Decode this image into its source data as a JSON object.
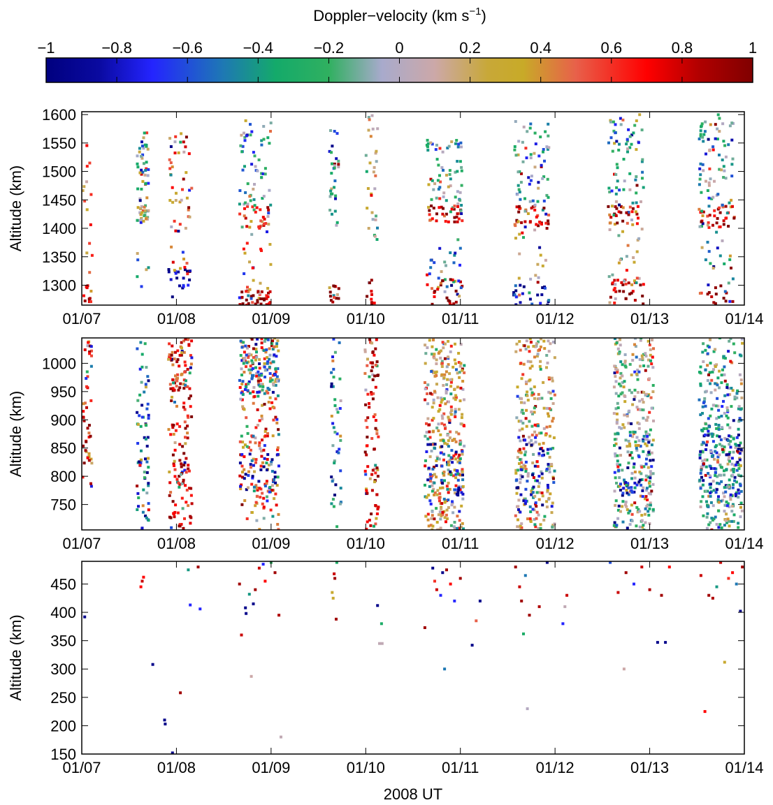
{
  "colorbar": {
    "label": "Doppler−velocity (km s",
    "label_exp": "−1",
    "label_close": ")",
    "range": [
      -1,
      1
    ],
    "tick_labels": [
      "−1",
      "−0.8",
      "−0.6",
      "−0.4",
      "−0.2",
      "0",
      "0.2",
      "0.4",
      "0.6",
      "0.8",
      "1"
    ],
    "tick_values": [
      -1,
      -0.8,
      -0.6,
      -0.4,
      -0.2,
      0,
      0.2,
      0.4,
      0.6,
      0.8,
      1
    ],
    "stops": [
      {
        "v": -1.0,
        "color": "#00007f"
      },
      {
        "v": -0.85,
        "color": "#0a0aa0"
      },
      {
        "v": -0.7,
        "color": "#2424ff"
      },
      {
        "v": -0.5,
        "color": "#1e78b4"
      },
      {
        "v": -0.35,
        "color": "#14aa6a"
      },
      {
        "v": -0.2,
        "color": "#30b060"
      },
      {
        "v": -0.05,
        "color": "#a8aacc"
      },
      {
        "v": 0.1,
        "color": "#cca8a8"
      },
      {
        "v": 0.25,
        "color": "#c8a838"
      },
      {
        "v": 0.35,
        "color": "#c8aa28"
      },
      {
        "v": 0.5,
        "color": "#e8604a"
      },
      {
        "v": 0.7,
        "color": "#ff0000"
      },
      {
        "v": 0.85,
        "color": "#b00000"
      },
      {
        "v": 1.0,
        "color": "#800000"
      }
    ]
  },
  "chart_data": [
    {
      "type": "scatter",
      "name": "high-altitude",
      "ylabel": "Altitude (km)",
      "xlabel": "",
      "xlim": [
        "2008-01-07",
        "2008-01-14"
      ],
      "ylim": [
        1265,
        1605
      ],
      "x_tick_labels": [
        "01/07",
        "01/08",
        "01/09",
        "01/10",
        "01/11",
        "01/12",
        "01/13",
        "01/14"
      ],
      "y_ticks": [
        1300,
        1350,
        1400,
        1450,
        1500,
        1550,
        1600
      ],
      "bands": [
        {
          "center": "2008-01-07T01:30",
          "width_h": 2.5,
          "clusters": [
            [
              1265,
              1300,
              0.8,
              10
            ],
            [
              1300,
              1560,
              0.4,
              14
            ]
          ]
        },
        {
          "center": "2008-01-07T15:30",
          "width_h": 3.0,
          "clusters": [
            [
              1410,
              1440,
              0.0,
              30
            ],
            [
              1440,
              1570,
              -0.35,
              40
            ],
            [
              1290,
              1360,
              -0.3,
              6
            ]
          ]
        },
        {
          "center": "2008-01-08T01:00",
          "width_h": 6.0,
          "clusters": [
            [
              1270,
              1330,
              -0.9,
              22
            ],
            [
              1400,
              1580,
              0.5,
              40
            ],
            [
              1330,
              1400,
              0.6,
              8
            ]
          ]
        },
        {
          "center": "2008-01-08T20:00",
          "width_h": 8.0,
          "clusters": [
            [
              1265,
              1290,
              0.9,
              40
            ],
            [
              1400,
              1440,
              0.6,
              30
            ],
            [
              1440,
              1590,
              -0.3,
              55
            ],
            [
              1290,
              1400,
              0.3,
              18
            ]
          ]
        },
        {
          "center": "2008-01-09T16:00",
          "width_h": 2.5,
          "clusters": [
            [
              1265,
              1300,
              0.9,
              14
            ],
            [
              1400,
              1600,
              -0.35,
              30
            ]
          ]
        },
        {
          "center": "2008-01-10T01:30",
          "width_h": 3.0,
          "clusters": [
            [
              1265,
              1310,
              0.9,
              10
            ],
            [
              1380,
              1600,
              0.1,
              30
            ]
          ]
        },
        {
          "center": "2008-01-10T20:00",
          "width_h": 9.0,
          "clusters": [
            [
              1265,
              1310,
              0.9,
              30
            ],
            [
              1410,
              1440,
              0.8,
              35
            ],
            [
              1440,
              1560,
              -0.2,
              60
            ],
            [
              1270,
              1380,
              -0.5,
              22
            ]
          ]
        },
        {
          "center": "2008-01-11T18:00",
          "width_h": 9.0,
          "clusters": [
            [
              1265,
              1300,
              -0.8,
              25
            ],
            [
              1400,
              1440,
              0.7,
              40
            ],
            [
              1440,
              1590,
              -0.25,
              60
            ],
            [
              1300,
              1400,
              0.3,
              16
            ]
          ]
        },
        {
          "center": "2008-01-12T18:00",
          "width_h": 9.0,
          "clusters": [
            [
              1265,
              1310,
              0.9,
              28
            ],
            [
              1405,
              1440,
              0.7,
              35
            ],
            [
              1440,
              1600,
              -0.3,
              65
            ],
            [
              1300,
              1400,
              0.3,
              25
            ]
          ]
        },
        {
          "center": "2008-01-13T17:00",
          "width_h": 9.0,
          "clusters": [
            [
              1265,
              1300,
              0.9,
              16
            ],
            [
              1400,
              1440,
              0.75,
              40
            ],
            [
              1440,
              1600,
              -0.25,
              70
            ],
            [
              1300,
              1400,
              -0.4,
              18
            ]
          ]
        }
      ]
    },
    {
      "type": "scatter",
      "name": "mid-altitude",
      "ylabel": "Altitude (km)",
      "xlabel": "",
      "xlim": [
        "2008-01-07",
        "2008-01-14"
      ],
      "ylim": [
        705,
        1045
      ],
      "x_tick_labels": [
        "01/07",
        "01/08",
        "01/09",
        "01/10",
        "01/11",
        "01/12",
        "01/13",
        "01/14"
      ],
      "y_ticks": [
        750,
        800,
        850,
        900,
        950,
        1000
      ],
      "bands": [
        {
          "center": "2008-01-07T01:30",
          "width_h": 2.5,
          "clusters": [
            [
              780,
              1040,
              0.75,
              45
            ]
          ]
        },
        {
          "center": "2008-01-07T15:30",
          "width_h": 3.0,
          "clusters": [
            [
              705,
              1040,
              -0.6,
              70
            ]
          ]
        },
        {
          "center": "2008-01-08T01:00",
          "width_h": 6.0,
          "clusters": [
            [
              705,
              1045,
              0.7,
              130
            ],
            [
              950,
              1045,
              0.6,
              40
            ]
          ]
        },
        {
          "center": "2008-01-08T21:00",
          "width_h": 10.0,
          "clusters": [
            [
              705,
              1045,
              0.5,
              200
            ],
            [
              940,
              1045,
              -0.4,
              100
            ],
            [
              770,
              840,
              -0.7,
              40
            ]
          ]
        },
        {
          "center": "2008-01-09T16:30",
          "width_h": 2.5,
          "clusters": [
            [
              705,
              1045,
              -0.5,
              45
            ]
          ]
        },
        {
          "center": "2008-01-10T01:30",
          "width_h": 3.5,
          "clusters": [
            [
              705,
              1045,
              0.75,
              90
            ]
          ]
        },
        {
          "center": "2008-01-10T20:00",
          "width_h": 10.0,
          "clusters": [
            [
              705,
              1045,
              0.3,
              320
            ],
            [
              750,
              860,
              -0.7,
              60
            ]
          ]
        },
        {
          "center": "2008-01-11T19:00",
          "width_h": 10.0,
          "clusters": [
            [
              705,
              1045,
              0.2,
              250
            ],
            [
              740,
              870,
              -0.7,
              50
            ]
          ]
        },
        {
          "center": "2008-01-12T20:00",
          "width_h": 10.0,
          "clusters": [
            [
              705,
              1045,
              0.0,
              280
            ],
            [
              760,
              880,
              -0.7,
              60
            ]
          ]
        },
        {
          "center": "2008-01-13T18:00",
          "width_h": 11.0,
          "clusters": [
            [
              705,
              1045,
              -0.2,
              300
            ],
            [
              760,
              880,
              -0.6,
              90
            ]
          ]
        }
      ]
    },
    {
      "type": "scatter",
      "name": "low-altitude",
      "ylabel": "Altitude (km)",
      "xlabel": "2008 UT",
      "xlim": [
        "2008-01-07",
        "2008-01-14"
      ],
      "ylim": [
        150,
        490
      ],
      "x_tick_labels": [
        "01/07",
        "01/08",
        "01/09",
        "01/10",
        "01/11",
        "01/12",
        "01/13",
        "01/14"
      ],
      "y_ticks": [
        150,
        200,
        250,
        300,
        350,
        400,
        450
      ],
      "points": [
        [
          "2008-01-07T00:45",
          392,
          -0.95
        ],
        [
          "2008-01-07T15:00",
          445,
          0.7
        ],
        [
          "2008-01-07T15:20",
          455,
          0.8
        ],
        [
          "2008-01-07T15:40",
          462,
          0.7
        ],
        [
          "2008-01-07T18:00",
          308,
          -0.95
        ],
        [
          "2008-01-07T21:00",
          210,
          -0.95
        ],
        [
          "2008-01-07T21:10",
          203,
          -0.95
        ],
        [
          "2008-01-07T23:00",
          152,
          -0.95
        ],
        [
          "2008-01-08T01:00",
          258,
          0.9
        ],
        [
          "2008-01-08T03:00",
          475,
          -0.4
        ],
        [
          "2008-01-08T03:30",
          413,
          -0.7
        ],
        [
          "2008-01-08T05:30",
          480,
          0.9
        ],
        [
          "2008-01-08T06:00",
          406,
          -0.7
        ],
        [
          "2008-01-08T16:00",
          450,
          0.9
        ],
        [
          "2008-01-08T16:30",
          360,
          0.8
        ],
        [
          "2008-01-08T17:30",
          408,
          -0.95
        ],
        [
          "2008-01-08T17:40",
          398,
          -0.95
        ],
        [
          "2008-01-08T18:30",
          432,
          -0.4
        ],
        [
          "2008-01-08T19:00",
          287,
          0.1
        ],
        [
          "2008-01-08T19:30",
          415,
          -0.95
        ],
        [
          "2008-01-08T20:00",
          440,
          0.9
        ],
        [
          "2008-01-08T21:00",
          478,
          0.8
        ],
        [
          "2008-01-08T22:00",
          485,
          -0.7
        ],
        [
          "2008-01-08T22:30",
          455,
          0.7
        ],
        [
          "2008-01-09T00:00",
          488,
          -0.2
        ],
        [
          "2008-01-09T01:00",
          470,
          0.9
        ],
        [
          "2008-01-09T02:00",
          395,
          0.85
        ],
        [
          "2008-01-09T02:30",
          180,
          0.05
        ],
        [
          "2008-01-09T15:30",
          435,
          0.3
        ],
        [
          "2008-01-09T15:45",
          425,
          0.3
        ],
        [
          "2008-01-09T16:00",
          468,
          0.8
        ],
        [
          "2008-01-09T16:10",
          460,
          0.9
        ],
        [
          "2008-01-09T16:30",
          388,
          0.9
        ],
        [
          "2008-01-09T16:40",
          488,
          -0.3
        ],
        [
          "2008-01-10T03:00",
          412,
          -0.95
        ],
        [
          "2008-01-10T03:30",
          345,
          0.05
        ],
        [
          "2008-01-10T04:00",
          380,
          -0.3
        ],
        [
          "2008-01-10T04:10",
          345,
          0.05
        ],
        [
          "2008-01-10T15:00",
          373,
          0.9
        ],
        [
          "2008-01-10T17:00",
          478,
          -0.95
        ],
        [
          "2008-01-10T17:30",
          455,
          0.6
        ],
        [
          "2008-01-10T18:00",
          440,
          0.8
        ],
        [
          "2008-01-10T19:00",
          430,
          -0.7
        ],
        [
          "2008-01-10T19:30",
          470,
          -0.95
        ],
        [
          "2008-01-10T20:00",
          300,
          -0.5
        ],
        [
          "2008-01-10T20:30",
          475,
          0.9
        ],
        [
          "2008-01-10T21:30",
          450,
          0.7
        ],
        [
          "2008-01-10T22:30",
          420,
          -0.7
        ],
        [
          "2008-01-11T00:00",
          460,
          0.9
        ],
        [
          "2008-01-11T03:00",
          342,
          -0.95
        ],
        [
          "2008-01-11T04:00",
          385,
          0.5
        ],
        [
          "2008-01-11T05:00",
          420,
          -0.95
        ],
        [
          "2008-01-11T14:00",
          480,
          0.9
        ],
        [
          "2008-01-11T15:00",
          445,
          0.8
        ],
        [
          "2008-01-11T15:30",
          420,
          0.9
        ],
        [
          "2008-01-11T16:00",
          362,
          -0.3
        ],
        [
          "2008-01-11T16:30",
          465,
          -0.5
        ],
        [
          "2008-01-11T17:00",
          230,
          0.0
        ],
        [
          "2008-01-11T17:30",
          395,
          0.9
        ],
        [
          "2008-01-11T20:00",
          410,
          0.85
        ],
        [
          "2008-01-11T22:00",
          488,
          -0.95
        ],
        [
          "2008-01-12T02:00",
          380,
          -0.7
        ],
        [
          "2008-01-12T02:30",
          410,
          0.05
        ],
        [
          "2008-01-12T03:00",
          430,
          0.8
        ],
        [
          "2008-01-12T14:00",
          488,
          -0.6
        ],
        [
          "2008-01-12T16:00",
          435,
          0.8
        ],
        [
          "2008-01-12T17:30",
          300,
          0.1
        ],
        [
          "2008-01-12T18:00",
          470,
          0.9
        ],
        [
          "2008-01-12T20:00",
          450,
          -0.7
        ],
        [
          "2008-01-12T22:00",
          480,
          0.8
        ],
        [
          "2008-01-13T00:00",
          440,
          0.85
        ],
        [
          "2008-01-13T02:00",
          347,
          -0.95
        ],
        [
          "2008-01-13T03:00",
          430,
          0.9
        ],
        [
          "2008-01-13T04:00",
          347,
          -0.95
        ],
        [
          "2008-01-13T05:00",
          480,
          0.7
        ],
        [
          "2008-01-13T13:00",
          465,
          0.8
        ],
        [
          "2008-01-13T14:00",
          225,
          0.7
        ],
        [
          "2008-01-13T15:00",
          430,
          0.9
        ],
        [
          "2008-01-13T16:00",
          425,
          0.85
        ],
        [
          "2008-01-13T17:00",
          445,
          -0.4
        ],
        [
          "2008-01-13T18:00",
          488,
          0.8
        ],
        [
          "2008-01-13T19:00",
          312,
          0.3
        ],
        [
          "2008-01-13T20:00",
          460,
          0.6
        ],
        [
          "2008-01-13T21:00",
          470,
          0.7
        ],
        [
          "2008-01-13T22:00",
          450,
          -0.5
        ],
        [
          "2008-01-13T23:00",
          402,
          -0.95
        ],
        [
          "2008-01-13T23:30",
          480,
          0.9
        ]
      ]
    }
  ]
}
